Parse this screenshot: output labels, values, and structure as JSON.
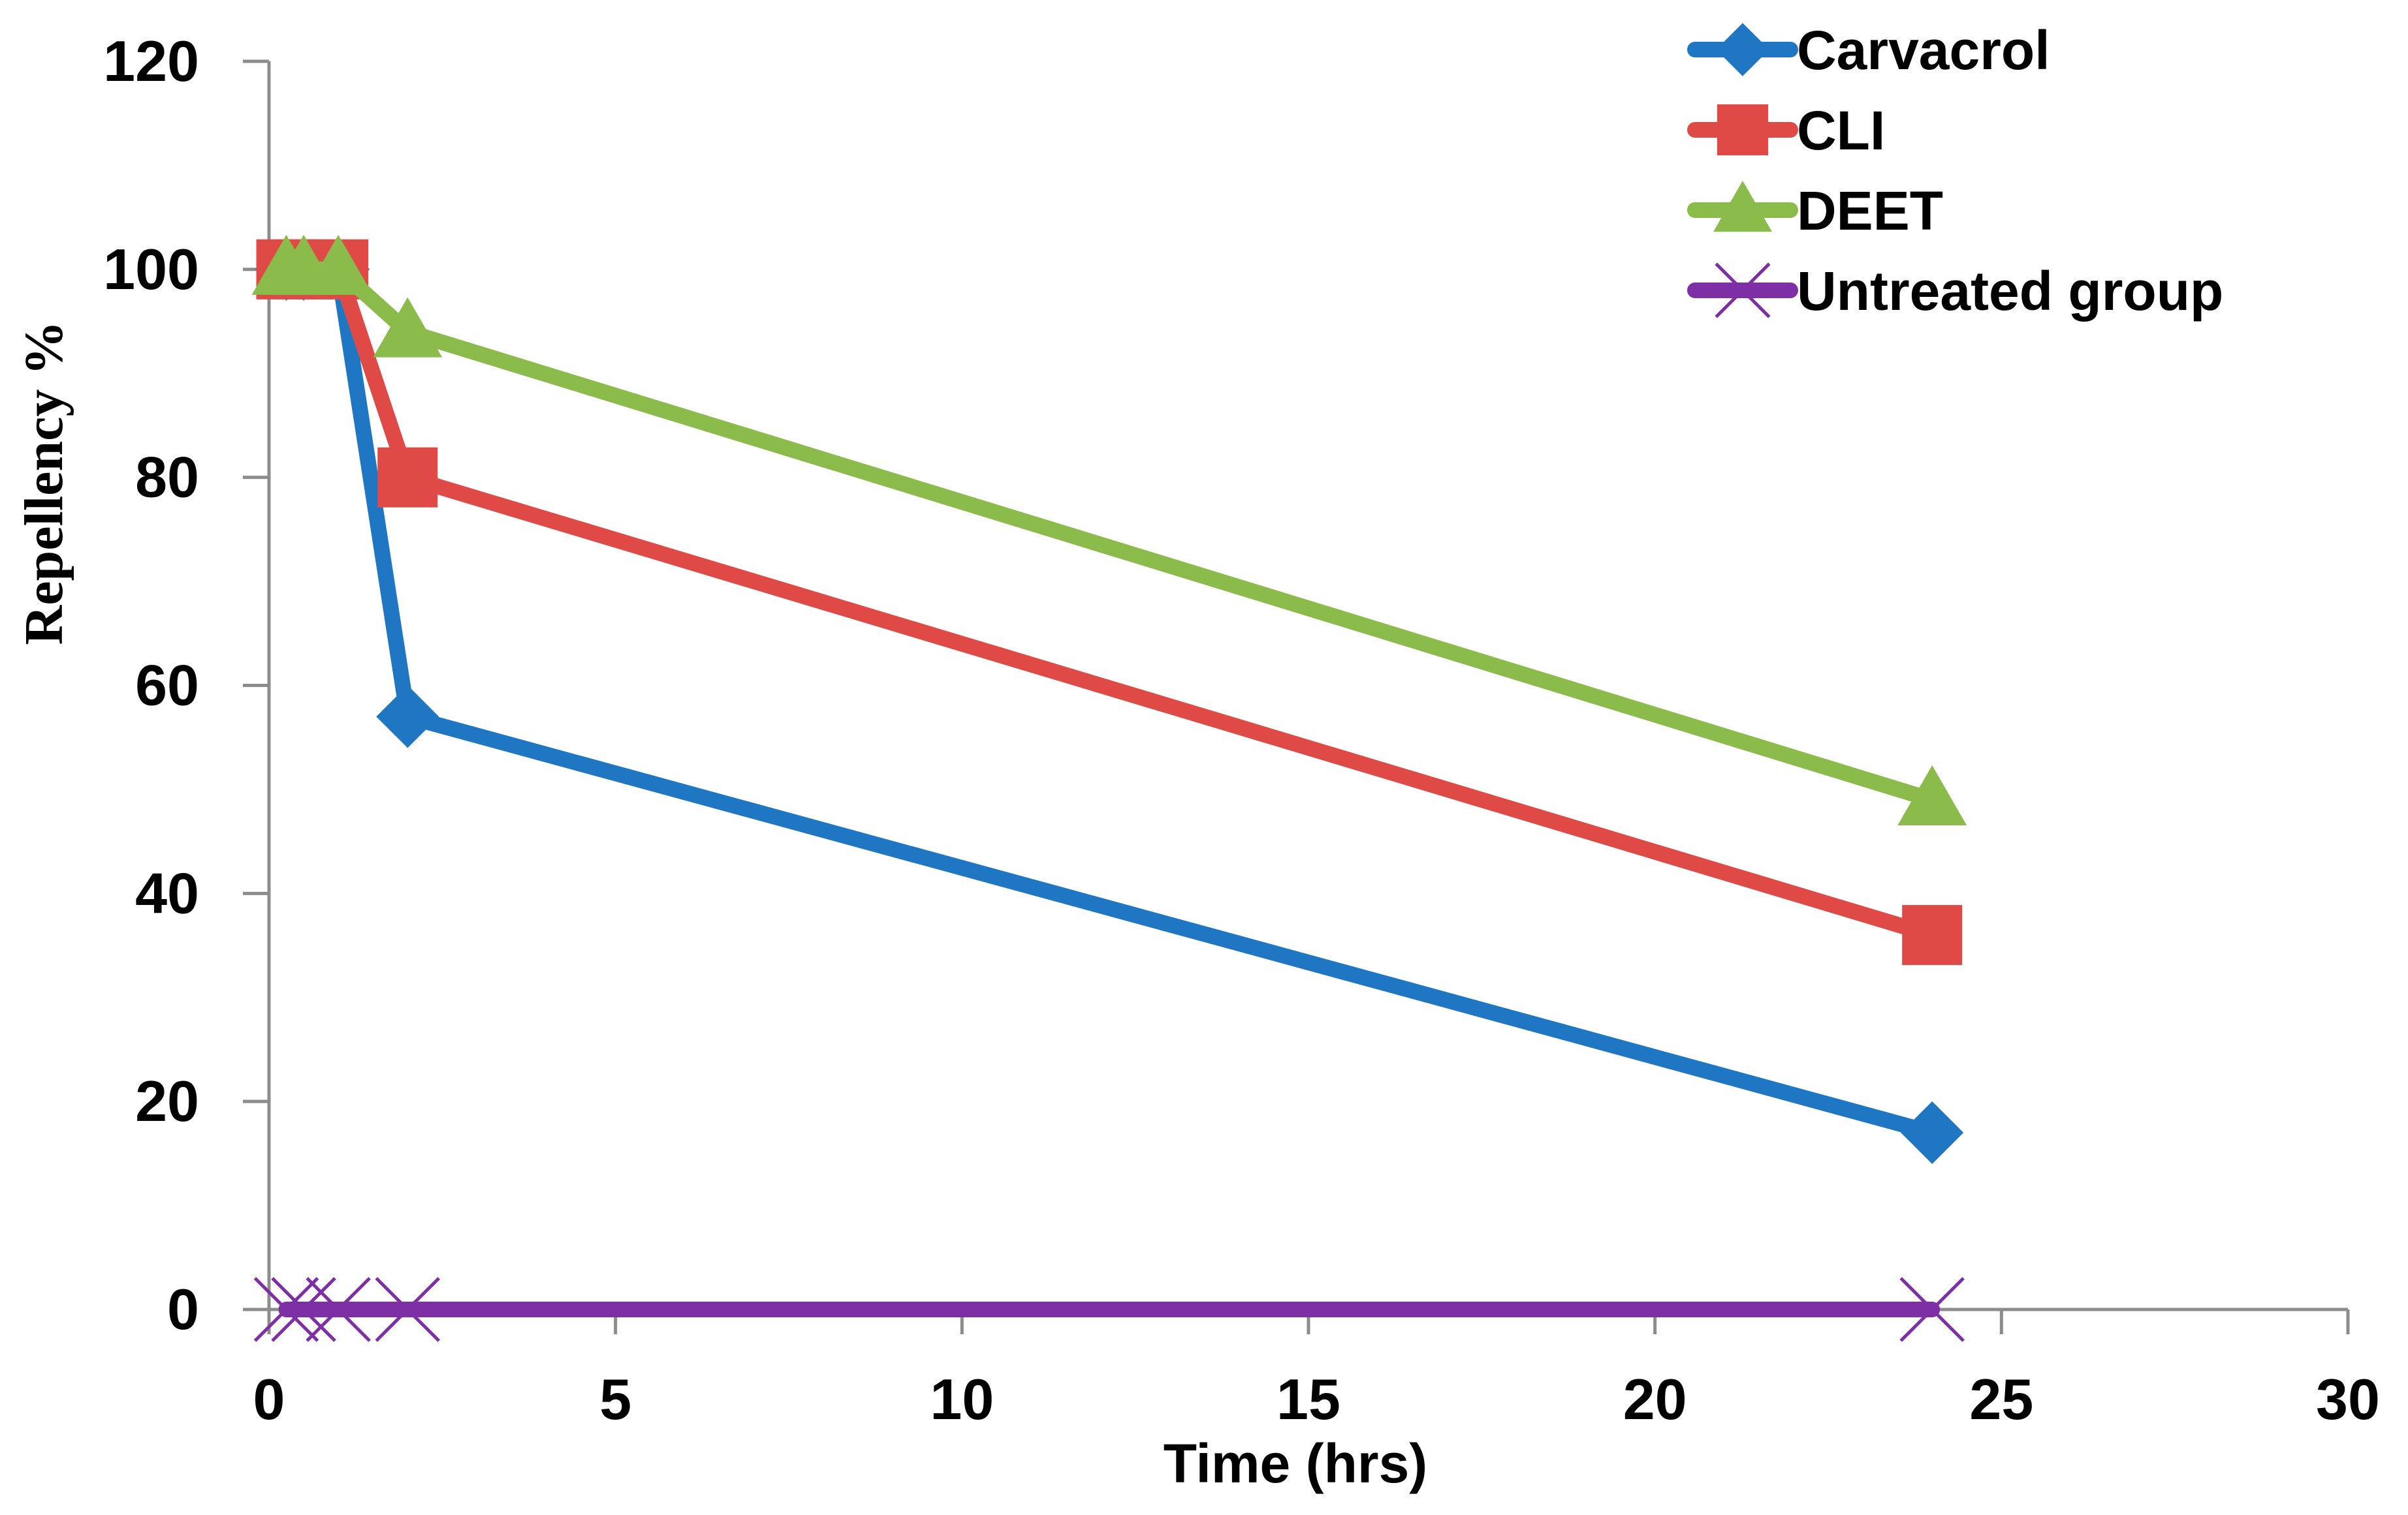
{
  "chart_data": {
    "type": "line",
    "title": "",
    "xlabel": "Time (hrs)",
    "ylabel": "Repellency %",
    "xlim": [
      0,
      30
    ],
    "ylim": [
      0,
      120
    ],
    "xticks": [
      "0",
      "5",
      "10",
      "15",
      "20",
      "25",
      "30"
    ],
    "yticks": [
      "0",
      "20",
      "40",
      "60",
      "80",
      "100",
      "120"
    ],
    "xtick_values": [
      0,
      5,
      10,
      15,
      20,
      25,
      30
    ],
    "ytick_values": [
      0,
      20,
      40,
      60,
      80,
      100,
      120
    ],
    "grid": false,
    "legend_position": "top-right",
    "series": [
      {
        "name": "Carvacrol",
        "color": "#1f77c4",
        "marker": "diamond",
        "x": [
          0.25,
          0.5,
          1,
          2,
          24
        ],
        "y": [
          100,
          100,
          100,
          57,
          17
        ]
      },
      {
        "name": "CLI",
        "color": "#e04a46",
        "marker": "square",
        "x": [
          0.25,
          0.5,
          1,
          2,
          24
        ],
        "y": [
          100,
          100,
          100,
          80,
          36
        ]
      },
      {
        "name": "DEET",
        "color": "#8bbb4a",
        "marker": "triangle",
        "x": [
          0.25,
          0.5,
          1,
          2,
          24
        ],
        "y": [
          100,
          100,
          100,
          94,
          49
        ]
      },
      {
        "name": "Untreated group",
        "color": "#7f2fa5",
        "marker": "x",
        "x": [
          0.25,
          0.5,
          1,
          2,
          24
        ],
        "y": [
          0,
          0,
          0,
          0,
          0
        ]
      }
    ]
  }
}
